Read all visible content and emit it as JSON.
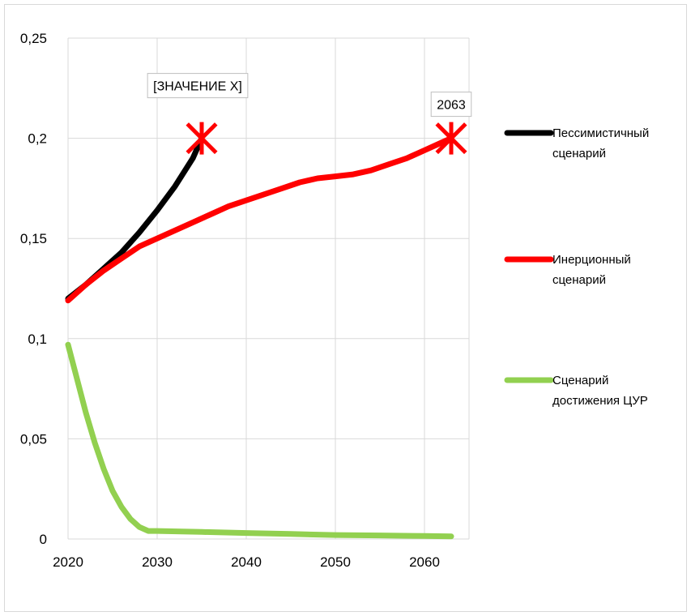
{
  "chart_data": {
    "type": "line",
    "x_ticks": [
      "2020",
      "2030",
      "2040",
      "2050",
      "2060"
    ],
    "y_ticks": [
      "0",
      "0,05",
      "0,1",
      "0,15",
      "0,2",
      "0,25"
    ],
    "xlim": [
      2020,
      2065
    ],
    "ylim": [
      0,
      0.25
    ],
    "grid": "vertical-and-horizontal",
    "legend_position": "right",
    "series": [
      {
        "name": "Пессимистичный сценарий",
        "name_lines": [
          "Пессимистичный",
          "сценарий"
        ],
        "color": "#000000",
        "x": [
          2020,
          2022,
          2024,
          2026,
          2028,
          2030,
          2032,
          2034,
          2035
        ],
        "y": [
          0.12,
          0.127,
          0.135,
          0.143,
          0.153,
          0.164,
          0.176,
          0.19,
          0.2
        ]
      },
      {
        "name": "Инерционный сценарий",
        "name_lines": [
          "Инерционный",
          "сценарий"
        ],
        "color": "#ff0000",
        "x": [
          2020,
          2022,
          2024,
          2026,
          2028,
          2030,
          2032,
          2034,
          2036,
          2038,
          2040,
          2042,
          2044,
          2046,
          2048,
          2050,
          2052,
          2054,
          2056,
          2058,
          2060,
          2062,
          2063
        ],
        "y": [
          0.119,
          0.127,
          0.134,
          0.14,
          0.146,
          0.15,
          0.154,
          0.158,
          0.162,
          0.166,
          0.169,
          0.172,
          0.175,
          0.178,
          0.18,
          0.181,
          0.182,
          0.184,
          0.187,
          0.19,
          0.194,
          0.198,
          0.2
        ]
      },
      {
        "name": "Сценарий достижения ЦУР",
        "name_lines": [
          "Сценарий",
          "достижения ЦУР"
        ],
        "color": "#92d050",
        "x": [
          2020,
          2021,
          2022,
          2023,
          2024,
          2025,
          2026,
          2027,
          2028,
          2029,
          2030,
          2035,
          2040,
          2045,
          2050,
          2055,
          2060,
          2063
        ],
        "y": [
          0.097,
          0.08,
          0.063,
          0.048,
          0.035,
          0.024,
          0.016,
          0.01,
          0.006,
          0.004,
          0.004,
          0.0035,
          0.003,
          0.0025,
          0.002,
          0.0018,
          0.0015,
          0.0013
        ]
      }
    ],
    "markers": [
      {
        "x": 2035,
        "y": 0.2,
        "symbol": "x",
        "color": "#ff0000"
      },
      {
        "x": 2063,
        "y": 0.2,
        "symbol": "x",
        "color": "#ff0000"
      }
    ],
    "annotations": [
      {
        "text": "[ЗНАЧЕНИЕ X]",
        "anchor_x": 2035,
        "anchor_y": 0.2
      },
      {
        "text": "2063",
        "anchor_x": 2063,
        "anchor_y": 0.2
      }
    ]
  }
}
